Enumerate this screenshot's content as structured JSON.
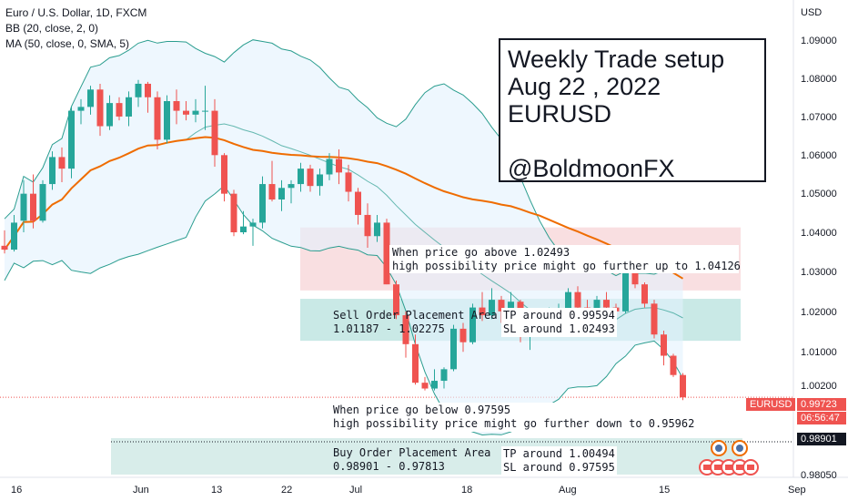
{
  "legend": {
    "symbol_line": "Euro / U.S. Dollar, 1D, FXCM",
    "bb_line": "BB (20, close, 2, 0)",
    "ma_line": "MA (50, close, 0, SMA, 5)"
  },
  "title_box": {
    "line1": "Weekly Trade setup",
    "line2": "Aug 22 , 2022",
    "line3": "EURUSD",
    "line4": "@BoldmoonFX"
  },
  "notes": {
    "above_l1": "When price go above 1.02493",
    "above_l2": "high possibility price might go further up to 1.04126",
    "sell_l1": "Sell Order Placement Area",
    "sell_l2": "1.01187 - 1.02275",
    "sell_tp": "TP around 0.99594",
    "sell_sl": "SL around 1.02493",
    "below_l1": "When price go below 0.97595",
    "below_l2": "high possibility price might go further down to 0.95962",
    "buy_l1": "Buy Order Placement Area",
    "buy_l2": "0.98901 - 0.97813",
    "buy_tp": "TP around 1.00494",
    "buy_sl": "SL around 0.97595"
  },
  "colors": {
    "up": "#26a69a",
    "down": "#ef5350",
    "bb_line": "#2a9d8f",
    "bb_fill": "#e3f2fd",
    "ma": "#ef6c00",
    "sell_zone": "#b2dfdb",
    "red_zone": "#f8d7da",
    "buy_zone": "#c8e6e1"
  },
  "chart_data": {
    "type": "candlestick",
    "title": "Euro / U.S. Dollar, 1D, FXCM",
    "y_axis": {
      "unit": "USD",
      "range": [
        0.977,
        1.1
      ],
      "ticks": [
        "1.09000",
        "1.08000",
        "1.07000",
        "1.06000",
        "1.05000",
        "1.04000",
        "1.03000",
        "1.02000",
        "1.01000",
        "1.00200",
        "0.98050"
      ]
    },
    "x_axis": {
      "ticks": [
        "16",
        "Jun",
        "13",
        "22",
        "Jul",
        "18",
        "Aug",
        "15",
        "Sep"
      ]
    },
    "price_labels": {
      "symbol": "EURUSD",
      "last": "0.99723",
      "countdown": "06:56:47",
      "level": "0.98901"
    },
    "candles": [
      [
        1.0365,
        1.0405,
        1.0345,
        1.0355
      ],
      [
        1.0355,
        1.0445,
        1.035,
        1.0425
      ],
      [
        1.043,
        1.0535,
        1.04,
        1.05
      ],
      [
        1.05,
        1.055,
        1.041,
        1.043
      ],
      [
        1.043,
        1.0535,
        1.0425,
        1.0525
      ],
      [
        1.0525,
        1.061,
        1.051,
        1.0595
      ],
      [
        1.0595,
        1.062,
        1.053,
        1.0565
      ],
      [
        1.0565,
        1.0725,
        1.054,
        1.0715
      ],
      [
        1.0715,
        1.0745,
        1.068,
        1.0725
      ],
      [
        1.0725,
        1.078,
        1.0705,
        1.077
      ],
      [
        1.077,
        1.0785,
        1.065,
        1.0675
      ],
      [
        1.0675,
        1.0755,
        1.0665,
        1.0735
      ],
      [
        1.0735,
        1.075,
        1.069,
        1.07
      ],
      [
        1.07,
        1.0765,
        1.0675,
        1.075
      ],
      [
        1.075,
        1.0795,
        1.0725,
        1.0785
      ],
      [
        1.0785,
        1.079,
        1.071,
        1.075
      ],
      [
        1.075,
        1.0765,
        1.0615,
        1.064
      ],
      [
        1.064,
        1.0755,
        1.063,
        1.074
      ],
      [
        1.074,
        1.077,
        1.068,
        1.0715
      ],
      [
        1.0715,
        1.074,
        1.069,
        1.0705
      ],
      [
        1.0705,
        1.0745,
        1.0685,
        1.0715
      ],
      [
        1.0715,
        1.078,
        1.0665,
        1.0715
      ],
      [
        1.0715,
        1.0745,
        1.057,
        1.06
      ],
      [
        1.06,
        1.0605,
        1.048,
        1.05
      ],
      [
        1.05,
        1.051,
        1.039,
        1.04
      ],
      [
        1.04,
        1.0455,
        1.0395,
        1.0415
      ],
      [
        1.0415,
        1.0435,
        1.0365,
        1.0425
      ],
      [
        1.0425,
        1.0545,
        1.041,
        1.0525
      ],
      [
        1.0525,
        1.0585,
        1.048,
        1.0485
      ],
      [
        1.0485,
        1.0535,
        1.0455,
        1.0515
      ],
      [
        1.0515,
        1.0535,
        1.0475,
        1.0525
      ],
      [
        1.0525,
        1.058,
        1.0505,
        1.0565
      ],
      [
        1.0565,
        1.0575,
        1.0505,
        1.052
      ],
      [
        1.052,
        1.0565,
        1.0495,
        1.055
      ],
      [
        1.055,
        1.0605,
        1.0535,
        1.059
      ],
      [
        1.059,
        1.0615,
        1.0525,
        1.0555
      ],
      [
        1.0555,
        1.0575,
        1.048,
        1.0505
      ],
      [
        1.0505,
        1.0515,
        1.042,
        1.0445
      ],
      [
        1.0445,
        1.0475,
        1.036,
        1.039
      ],
      [
        1.039,
        1.0445,
        1.0375,
        1.0425
      ],
      [
        1.0425,
        1.0435,
        1.0265,
        1.0265
      ],
      [
        1.0265,
        1.0275,
        1.0175,
        1.0185
      ],
      [
        1.0185,
        1.0195,
        1.0075,
        1.011
      ],
      [
        1.011,
        1.0135,
        1.0005,
        1.001
      ],
      [
        1.001,
        1.0025,
        0.999,
        0.9995
      ],
      [
        0.9995,
        1.0045,
        0.999,
        1.0015
      ],
      [
        1.0015,
        1.005,
        0.9995,
        1.0045
      ],
      [
        1.0045,
        1.016,
        1.004,
        1.015
      ],
      [
        1.015,
        1.0165,
        1.009,
        1.0115
      ],
      [
        1.0115,
        1.0215,
        1.011,
        1.0205
      ],
      [
        1.0205,
        1.0245,
        1.017,
        1.0185
      ],
      [
        1.0185,
        1.0255,
        1.0175,
        1.0225
      ],
      [
        1.0225,
        1.0235,
        1.0165,
        1.0195
      ],
      [
        1.0195,
        1.0245,
        1.016,
        1.022
      ],
      [
        1.022,
        1.0225,
        1.0115,
        1.0135
      ],
      [
        1.0135,
        1.0175,
        1.0095,
        1.0155
      ],
      [
        1.0155,
        1.0195,
        1.0145,
        1.0175
      ],
      [
        1.0175,
        1.0205,
        1.0165,
        1.0185
      ],
      [
        1.0185,
        1.0215,
        1.017,
        1.0195
      ],
      [
        1.0195,
        1.0255,
        1.0185,
        1.0245
      ],
      [
        1.0245,
        1.026,
        1.0185,
        1.0205
      ],
      [
        1.0205,
        1.0225,
        1.0135,
        1.0195
      ],
      [
        1.0195,
        1.0235,
        1.018,
        1.0225
      ],
      [
        1.0225,
        1.0245,
        1.0195,
        1.0205
      ],
      [
        1.0205,
        1.0215,
        1.0165,
        1.0195
      ],
      [
        1.0195,
        1.0345,
        1.019,
        1.0335
      ],
      [
        1.0335,
        1.0365,
        1.0255,
        1.0265
      ],
      [
        1.0265,
        1.027,
        1.0205,
        1.0215
      ],
      [
        1.0215,
        1.0225,
        1.0125,
        1.0135
      ],
      [
        1.0135,
        1.0145,
        1.0055,
        1.008
      ],
      [
        1.008,
        1.0085,
        1.0025,
        1.003
      ],
      [
        1.003,
        1.0035,
        0.9965,
        0.9972
      ]
    ]
  }
}
